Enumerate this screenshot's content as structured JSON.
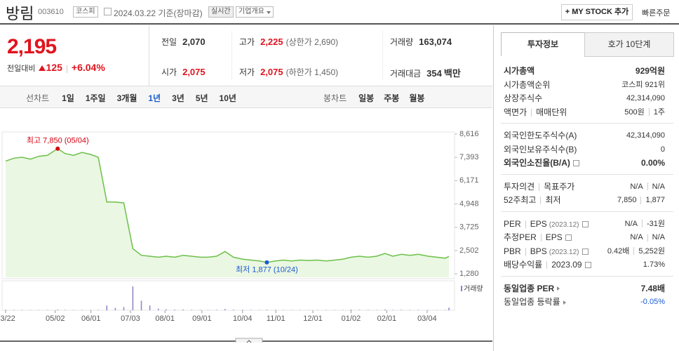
{
  "header": {
    "name": "방림",
    "code": "003610",
    "market": "코스피",
    "date": "2024.03.22",
    "basis": "기준(장마감)",
    "realtime": "실시간",
    "overview": "기업개요",
    "mystock": "+ MY STOCK 추가",
    "quick_order": "빠른주문"
  },
  "price": {
    "current": "2,195",
    "change_label": "전일대비",
    "change": "125",
    "change_pct": "+6.04%"
  },
  "summary": {
    "rows": [
      [
        {
          "label": "전일",
          "value": "2,070"
        },
        {
          "label": "고가",
          "value": "2,225",
          "note": "(상한가 2,690)"
        },
        {
          "label": "거래량",
          "value": "163,074"
        }
      ],
      [
        {
          "label": "시가",
          "value": "2,075"
        },
        {
          "label": "저가",
          "value": "2,075",
          "note": "(하한가 1,450)"
        },
        {
          "label": "거래대금",
          "value": "354",
          "unit": "백만"
        }
      ]
    ]
  },
  "tabs": {
    "line_label": "선차트",
    "periods": [
      "1일",
      "1주일",
      "3개월",
      "1년",
      "3년",
      "5년",
      "10년"
    ],
    "selected_period": "1년",
    "candle_label": "봉차트",
    "candles": [
      "일봉",
      "주봉",
      "월봉"
    ]
  },
  "chart_data": {
    "type": "line",
    "color": "#6cc04a",
    "fill": "#eaf7e2",
    "x": [
      "03/22",
      "03/29",
      "04/05",
      "04/12",
      "04/19",
      "04/26",
      "05/04",
      "05/10",
      "05/17",
      "05/24",
      "05/31",
      "06/07",
      "06/14",
      "06/21",
      "06/28",
      "07/05",
      "07/12",
      "07/19",
      "07/26",
      "08/02",
      "08/09",
      "08/16",
      "08/23",
      "08/30",
      "09/06",
      "09/13",
      "09/20",
      "09/27",
      "10/04",
      "10/11",
      "10/18",
      "10/24",
      "10/31",
      "11/07",
      "11/14",
      "11/21",
      "11/28",
      "12/05",
      "12/12",
      "12/19",
      "12/26",
      "01/02",
      "01/09",
      "01/16",
      "01/23",
      "01/30",
      "02/06",
      "02/13",
      "02/20",
      "02/27",
      "03/05",
      "03/12",
      "03/19",
      "03/22"
    ],
    "values": [
      7200,
      7350,
      7400,
      7300,
      7450,
      7500,
      7850,
      7600,
      7500,
      7650,
      7550,
      7400,
      5050,
      5050,
      5000,
      2600,
      2250,
      2200,
      2150,
      2200,
      2150,
      2250,
      2200,
      2150,
      2150,
      2200,
      2450,
      2150,
      2050,
      2000,
      1950,
      1877,
      1950,
      2000,
      1950,
      2000,
      1980,
      2000,
      1950,
      2000,
      2050,
      2150,
      2200,
      2150,
      2200,
      2350,
      2200,
      2300,
      2250,
      2300,
      2200,
      2150,
      2100,
      2195
    ],
    "ylim": [
      1280,
      8616
    ],
    "yticks": [
      {
        "value": 8616,
        "label": "8,616"
      },
      {
        "value": 7393,
        "label": "7,393"
      },
      {
        "value": 6171,
        "label": "6,171"
      },
      {
        "value": 4948,
        "label": "4,948"
      },
      {
        "value": 3725,
        "label": "3,725"
      },
      {
        "value": 2502,
        "label": "2,502"
      },
      {
        "value": 1280,
        "label": "1,280"
      }
    ],
    "xticks": [
      "03/22",
      "05/02",
      "06/01",
      "07/03",
      "08/01",
      "09/01",
      "10/04",
      "11/01",
      "12/01",
      "01/02",
      "02/01",
      "03/04"
    ],
    "volume_label": "거래량",
    "volume_color": "#8f80c8",
    "volume": [
      30000,
      25000,
      20000,
      22000,
      18000,
      20000,
      40000,
      25000,
      20000,
      18000,
      20000,
      25000,
      300000,
      150000,
      200000,
      1500000,
      600000,
      300000,
      100000,
      60000,
      40000,
      50000,
      30000,
      25000,
      20000,
      30000,
      80000,
      40000,
      30000,
      25000,
      20000,
      35000,
      25000,
      20000,
      18000,
      20000,
      15000,
      18000,
      20000,
      15000,
      20000,
      40000,
      30000,
      25000,
      20000,
      50000,
      25000,
      30000,
      20000,
      25000,
      20000,
      18000,
      20000,
      163074
    ],
    "annotations": [
      {
        "text": "최고 7,850 (05/04)",
        "x": "05/04",
        "y": 7850,
        "color": "#d6000f",
        "position": "above"
      },
      {
        "text": "최저 1,877 (10/24)",
        "x": "10/24",
        "y": 1877,
        "color": "#1a5ad0",
        "position": "below"
      }
    ]
  },
  "side": {
    "tabs": [
      "투자정보",
      "호가 10단계"
    ],
    "sections": [
      {
        "rows": [
          {
            "label": [
              "시가총액"
            ],
            "value": [
              "929억원"
            ],
            "bold": true
          },
          {
            "label": [
              "시가총액순위"
            ],
            "value": [
              "코스피 921위"
            ]
          },
          {
            "label": [
              "상장주식수"
            ],
            "value": [
              "42,314,090"
            ]
          },
          {
            "label": [
              "액면가",
              "매매단위"
            ],
            "value": [
              "500원",
              "1주"
            ]
          }
        ]
      },
      {
        "rows": [
          {
            "label": [
              "외국인한도주식수(A)"
            ],
            "value": [
              "42,314,090"
            ]
          },
          {
            "label": [
              "외국인보유주식수(B)"
            ],
            "value": [
              "0"
            ]
          },
          {
            "label": [
              "외국인소진율(B/A)"
            ],
            "value": [
              "0.00%"
            ],
            "bold": true,
            "info": true
          }
        ]
      },
      {
        "rows": [
          {
            "label": [
              "투자의견",
              "목표주가"
            ],
            "value": [
              "N/A",
              "N/A"
            ]
          },
          {
            "label": [
              "52주최고",
              "최저"
            ],
            "value": [
              "7,850",
              "1,877"
            ]
          }
        ]
      },
      {
        "rows": [
          {
            "label": [
              "PER",
              "EPS"
            ],
            "sub": "(2023.12)",
            "info": true,
            "value": [
              "N/A",
              "-31원"
            ]
          },
          {
            "label": [
              "추정PER",
              "EPS"
            ],
            "info": true,
            "value": [
              "N/A",
              "N/A"
            ]
          },
          {
            "label": [
              "PBR",
              "BPS"
            ],
            "sub": "(2023.12)",
            "info": true,
            "value": [
              "0.42배",
              "5,252원"
            ]
          },
          {
            "label": [
              "배당수익률",
              "2023.09"
            ],
            "info": true,
            "value": [
              "1.73%"
            ]
          }
        ]
      },
      {
        "rows": [
          {
            "label": [
              "동일업종 PER"
            ],
            "arrow": true,
            "value": [
              "7.48배"
            ],
            "bold": true
          },
          {
            "label": [
              "동일업종 등락률"
            ],
            "arrow": true,
            "value": [
              "-0.05%"
            ],
            "value_color": "#1a5ad0"
          }
        ]
      }
    ]
  }
}
